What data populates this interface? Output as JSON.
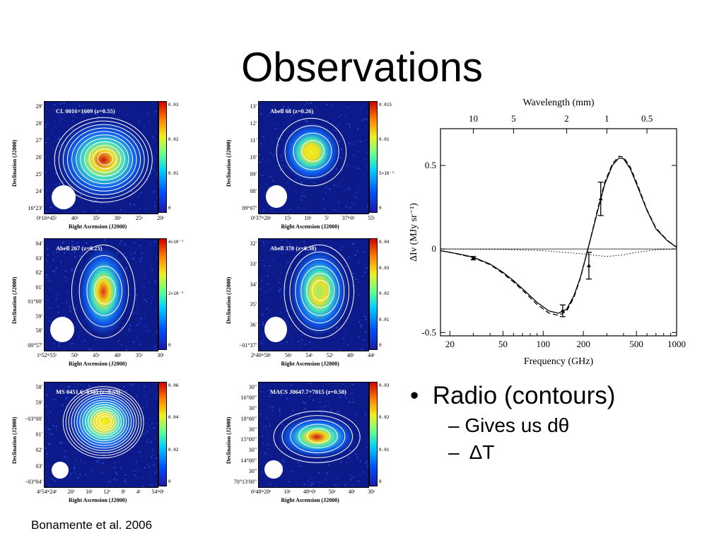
{
  "slide": {
    "title": "Observations",
    "citation": "Bonamente et al. 2006"
  },
  "panels": [
    {
      "title": "CL 0016+1609 (z=0.55)",
      "ylabel": "Declination (J2000)",
      "xlabel": "Right Ascension (J2000)",
      "yticks": [
        "29'",
        "28'",
        "27'",
        "26'",
        "25'",
        "24'",
        "16°23'"
      ],
      "xticks": [
        "0ʰ16ᵐ45ˢ",
        "40ˢ",
        "35ˢ",
        "30ˢ",
        "25ˢ",
        "20ˢ"
      ],
      "cbar_ticks": [
        "0.03",
        "0.02",
        "0.01",
        "0"
      ],
      "peak_color": "#d01010"
    },
    {
      "title": "Abell 68 (z=0.26)",
      "ylabel": "Declination (J2000)",
      "xlabel": "Right Ascension (J2000)",
      "yticks": [
        "13'",
        "12'",
        "11'",
        "10'",
        "09'",
        "08'",
        "09°07'"
      ],
      "xticks": [
        "0ʰ37ᵐ20ˢ",
        "15ˢ",
        "10ˢ",
        "5ˢ",
        "37ᵐ0ˢ",
        "55ˢ"
      ],
      "cbar_ticks": [
        "0.015",
        "0.01",
        "5×10⁻³",
        "0"
      ],
      "peak_color": "#f0f020"
    },
    {
      "title": "Abell 267 (z=0.23)",
      "ylabel": "Declination (J2000)",
      "xlabel": "Right Ascension (J2000)",
      "yticks": [
        "04'",
        "03'",
        "02'",
        "01'",
        "01°00'",
        "59'",
        "58'",
        "00°57'"
      ],
      "xticks": [
        "1ʰ52ᵐ55ˢ",
        "50ˢ",
        "45ˢ",
        "40ˢ",
        "35ˢ",
        "30ˢ"
      ],
      "cbar_ticks": [
        "4×10⁻³",
        "2×10⁻³",
        "0"
      ],
      "peak_color": "#e03010"
    },
    {
      "title": "Abell 370 (z=0.38)",
      "ylabel": "Declination (J2000)",
      "xlabel": "Right Ascension (J2000)",
      "yticks": [
        "32'",
        "33'",
        "34'",
        "35'",
        "36'",
        "−01°37'"
      ],
      "xticks": [
        "2ʰ40ᵐ58ˢ",
        "56ˢ",
        "54ˢ",
        "52ˢ",
        "48ˢ",
        "44ˢ"
      ],
      "cbar_ticks": [
        "0.04",
        "0.03",
        "0.02",
        "0.01",
        "0"
      ],
      "peak_color": "#90f070"
    },
    {
      "title": "MS 0451.6−0305 (z=0.55)",
      "ylabel": "Declination (J2000)",
      "xlabel": "Right Ascension (J2000)",
      "yticks": [
        "58'",
        "59'",
        "−03°00'",
        "01'",
        "02'",
        "03'",
        "−03°04'"
      ],
      "xticks": [
        "4ʰ54ᵐ24ˢ",
        "20ˢ",
        "16ˢ",
        "12ˢ",
        "8ˢ",
        "4ˢ",
        "54ᵐ0ˢ"
      ],
      "cbar_ticks": [
        "0.06",
        "0.04",
        "0.02",
        "0"
      ],
      "peak_color": "#f0f020"
    },
    {
      "title": "MACS J0647.7+7015 (z=0.58)",
      "ylabel": "Declination (J2000)",
      "xlabel": "Right Ascension (J2000)",
      "yticks": [
        "30\"",
        "16°00\"",
        "30\"",
        "18°00\"",
        "30\"",
        "15°00\"",
        "30\"",
        "14°00\"",
        "30\"",
        "70°13ʹ00\""
      ],
      "xticks": [
        "6ʰ48ᵐ20ˢ",
        "10ˢ",
        "48ᵐ0ˢ",
        "50ˢ",
        "40ˢ",
        "30ˢ"
      ],
      "cbar_ticks": [
        "0.03",
        "0.02",
        "0.01",
        "0"
      ],
      "peak_color": "#d01010"
    }
  ],
  "chart_data": {
    "type": "line",
    "title": "",
    "top_axis_label": "Wavelength (mm)",
    "top_ticks": [
      "10",
      "5",
      "2",
      "1",
      "0.5"
    ],
    "top_tick_values_mm": [
      10,
      5,
      2,
      1,
      0.5
    ],
    "xlabel": "Frequency (GHz)",
    "ylabel": "ΔIν (MJy sr⁻¹)",
    "xscale": "log",
    "xlim": [
      17,
      1000
    ],
    "ylim": [
      -0.52,
      0.72
    ],
    "xticks": [
      "20",
      "50",
      "100",
      "200",
      "500",
      "1000"
    ],
    "xtick_values": [
      20,
      50,
      100,
      200,
      500,
      1000
    ],
    "yticks": [
      "0.5",
      "0",
      "-0.5"
    ],
    "ytick_values": [
      0.5,
      0,
      -0.5
    ],
    "series": [
      {
        "style": "solid",
        "x": [
          17,
          20,
          25,
          30,
          40,
          50,
          60,
          75,
          90,
          110,
          130,
          150,
          170,
          190,
          210,
          230,
          260,
          290,
          330,
          370,
          400,
          450,
          500,
          600,
          700,
          850,
          1000
        ],
        "y": [
          -0.01,
          -0.02,
          -0.035,
          -0.05,
          -0.09,
          -0.14,
          -0.19,
          -0.26,
          -0.32,
          -0.37,
          -0.385,
          -0.36,
          -0.28,
          -0.17,
          -0.04,
          0.08,
          0.25,
          0.39,
          0.5,
          0.545,
          0.54,
          0.48,
          0.39,
          0.23,
          0.12,
          0.05,
          0.01
        ]
      },
      {
        "style": "dashed",
        "x": [
          17,
          20,
          25,
          30,
          40,
          50,
          60,
          75,
          90,
          110,
          130,
          150,
          170,
          190,
          210,
          230,
          260,
          290,
          330,
          370,
          400,
          450,
          500,
          600,
          700,
          850,
          1000
        ],
        "y": [
          -0.01,
          -0.02,
          -0.037,
          -0.052,
          -0.094,
          -0.146,
          -0.198,
          -0.27,
          -0.332,
          -0.383,
          -0.398,
          -0.372,
          -0.29,
          -0.175,
          -0.04,
          0.085,
          0.26,
          0.4,
          0.51,
          0.555,
          0.55,
          0.49,
          0.4,
          0.235,
          0.125,
          0.052,
          0.011
        ]
      },
      {
        "style": "dotted",
        "x": [
          17,
          50,
          100,
          200,
          300,
          400,
          500,
          700,
          1000
        ],
        "y": [
          0,
          -0.003,
          -0.01,
          -0.03,
          -0.045,
          -0.035,
          -0.02,
          -0.005,
          0
        ]
      }
    ],
    "points": [
      {
        "x": 30,
        "y": -0.055,
        "err": 0.01
      },
      {
        "x": 140,
        "y": -0.37,
        "err": 0.035
      },
      {
        "x": 220,
        "y": -0.1,
        "err": 0.08
      },
      {
        "x": 270,
        "y": 0.3,
        "err": 0.1
      }
    ]
  },
  "bullets": [
    {
      "level": 1,
      "marker": "•",
      "text": "Radio (contours)"
    },
    {
      "level": 2,
      "marker": "–",
      "text": "Gives us dθ"
    },
    {
      "level": 2,
      "marker": "–",
      "text": " ΔT"
    }
  ]
}
